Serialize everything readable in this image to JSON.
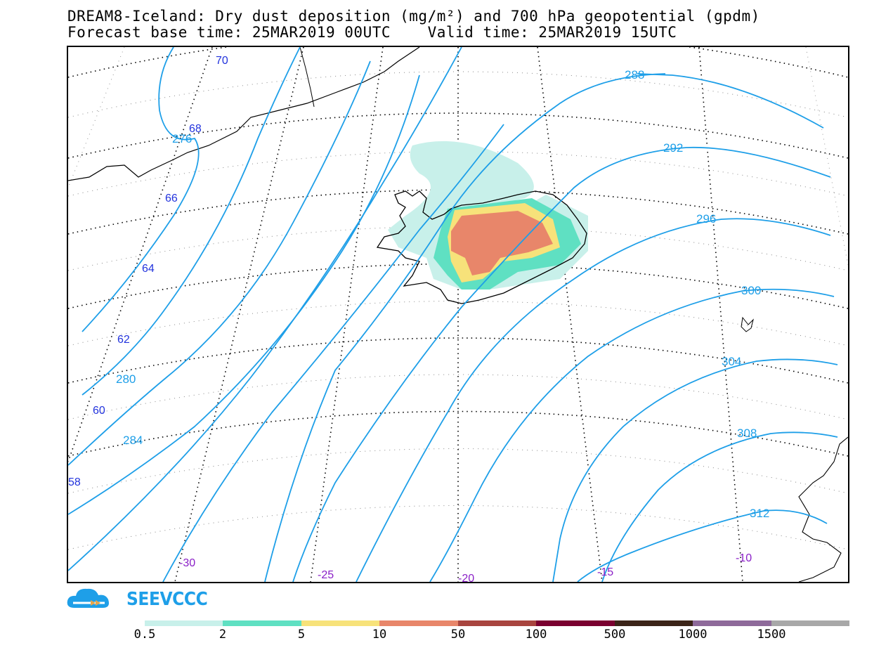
{
  "title": {
    "line1": "DREAM8-Iceland: Dry dust deposition (mg/m²) and 700 hPa geopotential (gpdm)",
    "line2": "Forecast base time: 25MAR2019 00UTC    Valid time: 25MAR2019 15UTC"
  },
  "map": {
    "latitude_labels": [
      "70",
      "68",
      "66",
      "64",
      "62",
      "60",
      "58"
    ],
    "longitude_labels": [
      "-30",
      "-25",
      "-20",
      "-15",
      "-10"
    ],
    "geopotential_labels": [
      "276",
      "280",
      "284",
      "288",
      "292",
      "296",
      "300",
      "304",
      "308",
      "312"
    ],
    "dust_colors": {
      "level_0_5": "#c8f0ea",
      "level_2": "#5fe0c2",
      "level_5": "#f7e27a",
      "level_10": "#e8866a"
    },
    "contour_color": "#1e9fe8"
  },
  "logo": {
    "text": "SEEVCCC",
    "color": "#1e9fe8"
  },
  "colorbar": {
    "colors": [
      "#c8f0ea",
      "#5fe0c2",
      "#f7e27a",
      "#e8866a",
      "#a8453f",
      "#7a0030",
      "#3b2418",
      "#8e6a9a",
      "#a8a8a8"
    ],
    "labels": [
      "0.5",
      "2",
      "5",
      "10",
      "50",
      "100",
      "500",
      "1000",
      "1500"
    ]
  }
}
